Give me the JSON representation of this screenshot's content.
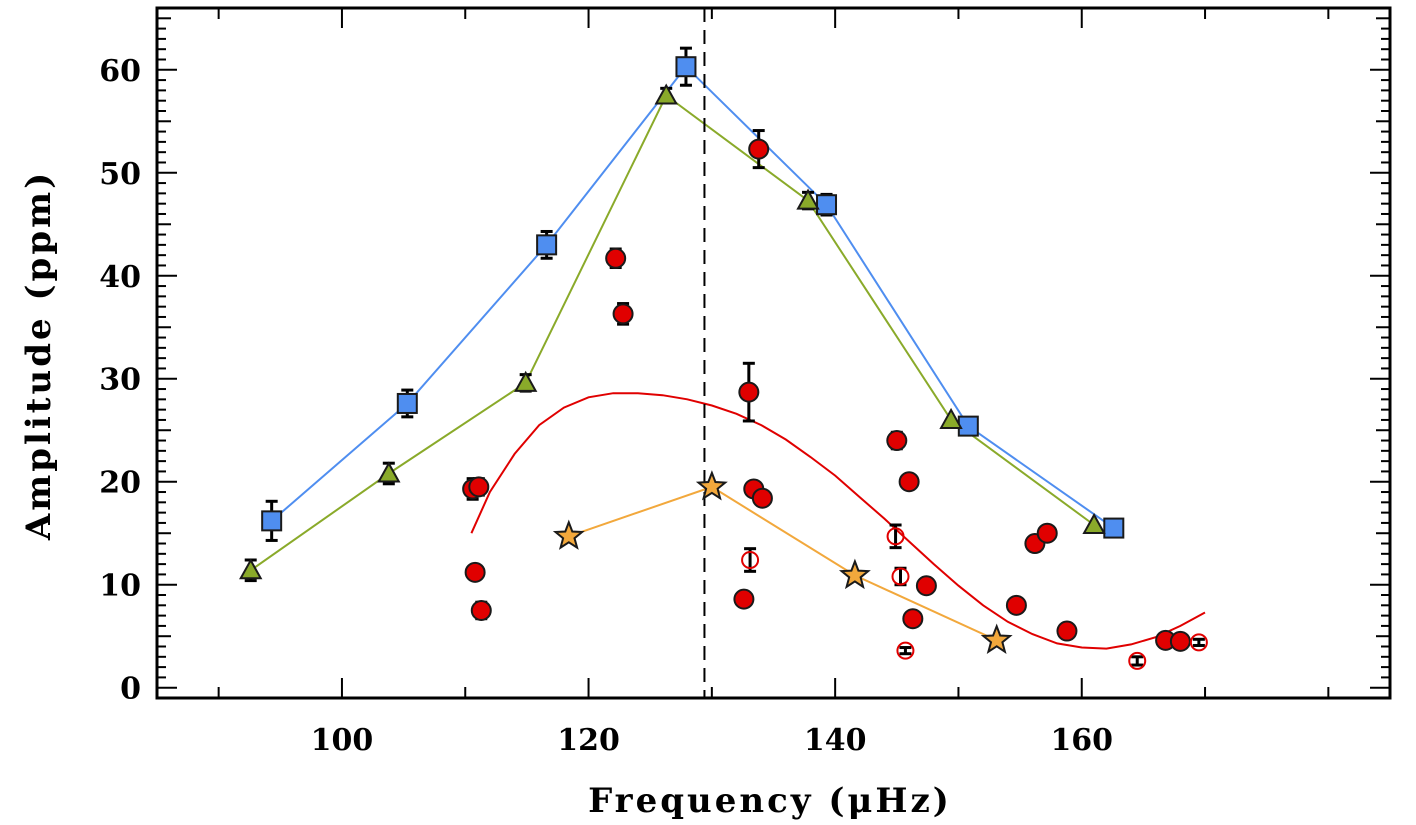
{
  "chart_data": {
    "type": "scatter",
    "xlabel": "Frequency (μHz)",
    "ylabel": "Amplitude (ppm)",
    "xlim": [
      85,
      185
    ],
    "ylim": [
      -1,
      66
    ],
    "x_ticks": [
      100,
      120,
      140,
      160
    ],
    "y_ticks": [
      0,
      10,
      20,
      30,
      40,
      50,
      60
    ],
    "x_tick_labels": [
      "100",
      "120",
      "140",
      "160"
    ],
    "y_tick_labels": [
      "0",
      "10",
      "20",
      "30",
      "40",
      "50",
      "60"
    ],
    "grid": false,
    "legend": "none",
    "vline": {
      "x": 129.4,
      "style": "dashed",
      "color": "#000000"
    },
    "series": [
      {
        "marker": "square",
        "color": "#4f8ef0",
        "line_color": "#4f8ef0",
        "connected": true,
        "points": [
          {
            "x": 94.3,
            "y": 16.2,
            "err": 1.9
          },
          {
            "x": 105.3,
            "y": 27.6,
            "err": 1.3
          },
          {
            "x": 116.6,
            "y": 43.0,
            "err": 1.3
          },
          {
            "x": 127.9,
            "y": 60.3,
            "err": 1.8
          },
          {
            "x": 139.3,
            "y": 46.9,
            "err": 1.0
          },
          {
            "x": 150.8,
            "y": 25.4,
            "err": 0
          },
          {
            "x": 162.6,
            "y": 15.5,
            "err": 0
          }
        ]
      },
      {
        "marker": "triangle",
        "color": "#8aaa2a",
        "line_color": "#8aaa2a",
        "connected": true,
        "points": [
          {
            "x": 92.6,
            "y": 11.4,
            "err": 1.0
          },
          {
            "x": 103.8,
            "y": 20.8,
            "err": 1.0
          },
          {
            "x": 114.9,
            "y": 29.6,
            "err": 0.8
          },
          {
            "x": 126.3,
            "y": 57.5,
            "err": 0.7
          },
          {
            "x": 137.8,
            "y": 47.3,
            "err": 0.8
          },
          {
            "x": 149.4,
            "y": 26.0,
            "err": 0
          },
          {
            "x": 161.0,
            "y": 15.8,
            "err": 0
          }
        ]
      },
      {
        "marker": "star",
        "color": "#f2a83c",
        "line_color": "#f2a83c",
        "connected": true,
        "points": [
          {
            "x": 118.4,
            "y": 14.7,
            "err": 0
          },
          {
            "x": 130.0,
            "y": 19.5,
            "err": 0
          },
          {
            "x": 141.6,
            "y": 10.9,
            "err": 0
          },
          {
            "x": 153.1,
            "y": 4.6,
            "err": 0
          }
        ]
      },
      {
        "marker": "circle",
        "color": "#e00000",
        "connected": false,
        "points": [
          {
            "x": 110.6,
            "y": 19.3,
            "err": 1.0
          },
          {
            "x": 111.1,
            "y": 19.5,
            "err": 0.8
          },
          {
            "x": 110.8,
            "y": 11.2,
            "err": 0.6
          },
          {
            "x": 111.3,
            "y": 7.5,
            "err": 0.8
          },
          {
            "x": 122.2,
            "y": 41.7,
            "err": 0.9
          },
          {
            "x": 122.8,
            "y": 36.3,
            "err": 1.0
          },
          {
            "x": 132.6,
            "y": 8.6,
            "err": 0
          },
          {
            "x": 133.0,
            "y": 28.7,
            "err": 2.8
          },
          {
            "x": 133.4,
            "y": 19.3,
            "err": 0
          },
          {
            "x": 133.8,
            "y": 52.3,
            "err": 1.8
          },
          {
            "x": 134.1,
            "y": 18.4,
            "err": 0
          },
          {
            "x": 145.0,
            "y": 24.0,
            "err": 0.8
          },
          {
            "x": 146.0,
            "y": 20.0,
            "err": 0
          },
          {
            "x": 146.3,
            "y": 6.7,
            "err": 0
          },
          {
            "x": 147.4,
            "y": 9.9,
            "err": 0
          },
          {
            "x": 154.7,
            "y": 8.0,
            "err": 0
          },
          {
            "x": 156.2,
            "y": 14.0,
            "err": 0.7
          },
          {
            "x": 157.2,
            "y": 15.0,
            "err": 0
          },
          {
            "x": 158.8,
            "y": 5.5,
            "err": 0
          },
          {
            "x": 166.8,
            "y": 4.6,
            "err": 0
          },
          {
            "x": 168.0,
            "y": 4.5,
            "err": 0
          }
        ]
      },
      {
        "marker": "open-circle",
        "color": "#e00000",
        "connected": false,
        "points": [
          {
            "x": 133.1,
            "y": 12.4,
            "err": 1.1
          },
          {
            "x": 144.9,
            "y": 14.7,
            "err": 1.1
          },
          {
            "x": 145.3,
            "y": 10.8,
            "err": 0.8
          },
          {
            "x": 145.7,
            "y": 3.6,
            "err": 0.3
          },
          {
            "x": 164.5,
            "y": 2.6,
            "err": 0.4
          },
          {
            "x": 169.5,
            "y": 4.4,
            "err": 0.3
          }
        ]
      }
    ],
    "fit_curve": {
      "color": "#e00000",
      "points": [
        [
          110.5,
          15.0
        ],
        [
          112,
          19.0
        ],
        [
          114,
          22.7
        ],
        [
          116,
          25.5
        ],
        [
          118,
          27.2
        ],
        [
          120,
          28.2
        ],
        [
          122,
          28.6
        ],
        [
          124,
          28.6
        ],
        [
          126,
          28.4
        ],
        [
          128,
          28.0
        ],
        [
          130,
          27.4
        ],
        [
          132,
          26.6
        ],
        [
          134,
          25.5
        ],
        [
          136,
          24.1
        ],
        [
          138,
          22.4
        ],
        [
          140,
          20.6
        ],
        [
          142,
          18.5
        ],
        [
          144,
          16.4
        ],
        [
          146,
          14.2
        ],
        [
          148,
          12.0
        ],
        [
          150,
          9.9
        ],
        [
          152,
          8.0
        ],
        [
          154,
          6.4
        ],
        [
          156,
          5.2
        ],
        [
          158,
          4.3
        ],
        [
          160,
          3.9
        ],
        [
          162,
          3.8
        ],
        [
          164,
          4.2
        ],
        [
          166,
          4.9
        ],
        [
          168,
          6.0
        ],
        [
          170,
          7.3
        ]
      ]
    }
  }
}
